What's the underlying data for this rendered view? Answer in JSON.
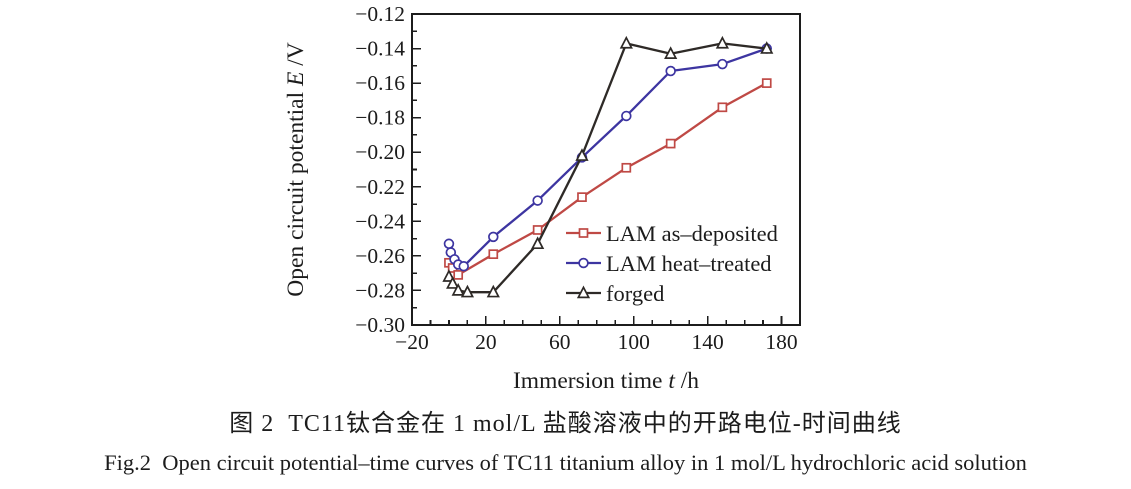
{
  "figure": {
    "caption_zh": "图 2  TC11钛合金在 1 mol/L 盐酸溶液中的开路电位-时间曲线",
    "caption_en": "Fig.2  Open circuit potential–time curves of TC11 titanium alloy in 1 mol/L hydrochloric acid solution"
  },
  "colors": {
    "as_deposited": "#bf4945",
    "heat_treated": "#3d35a1",
    "forged": "#2e2a27",
    "axis": "#1c1c1c",
    "marker_fill": "#ffffff",
    "background": "#ffffff"
  },
  "chart_data": {
    "type": "line",
    "title": "",
    "xlabel": "Immersion time t /h",
    "xlabel_parts": [
      [
        "Immersion time ",
        false
      ],
      [
        "t",
        true
      ],
      [
        " /h",
        false
      ]
    ],
    "ylabel": "Open circuit potential E /V",
    "ylabel_parts": [
      [
        "Open circuit potential ",
        false
      ],
      [
        "E",
        true
      ],
      [
        " /V",
        false
      ]
    ],
    "xlim": [
      -20,
      190
    ],
    "ylim": [
      -0.3,
      -0.12
    ],
    "grid": false,
    "x_ticks": {
      "values": [
        -20,
        20,
        60,
        100,
        140,
        180
      ],
      "labels": [
        "−20",
        "20",
        "60",
        "100",
        "140",
        "180"
      ],
      "minor_step": 10
    },
    "y_ticks": {
      "values": [
        -0.12,
        -0.14,
        -0.16,
        -0.18,
        -0.2,
        -0.22,
        -0.24,
        -0.26,
        -0.28,
        -0.3
      ],
      "labels": [
        "−0.12",
        "−0.14",
        "−0.16",
        "−0.18",
        "−0.20",
        "−0.22",
        "−0.24",
        "−0.26",
        "−0.28",
        "−0.30"
      ],
      "minor_step": 0.01
    },
    "legend_position": "inside right-bottom",
    "series": [
      {
        "name": "LAM as–deposited",
        "marker": "square",
        "color": "#bf4945",
        "points": [
          [
            0,
            -0.264
          ],
          [
            2,
            -0.267
          ],
          [
            5,
            -0.271
          ],
          [
            24,
            -0.259
          ],
          [
            48,
            -0.245
          ],
          [
            72,
            -0.226
          ],
          [
            96,
            -0.209
          ],
          [
            120,
            -0.195
          ],
          [
            148,
            -0.174
          ],
          [
            172,
            -0.16
          ]
        ]
      },
      {
        "name": "LAM heat–treated",
        "marker": "circle",
        "color": "#3d35a1",
        "points": [
          [
            0,
            -0.253
          ],
          [
            1,
            -0.258
          ],
          [
            3,
            -0.262
          ],
          [
            5,
            -0.265
          ],
          [
            8,
            -0.266
          ],
          [
            24,
            -0.249
          ],
          [
            48,
            -0.228
          ],
          [
            72,
            -0.203
          ],
          [
            96,
            -0.179
          ],
          [
            120,
            -0.153
          ],
          [
            148,
            -0.149
          ],
          [
            172,
            -0.14
          ]
        ]
      },
      {
        "name": "forged",
        "marker": "triangle",
        "color": "#2e2a27",
        "points": [
          [
            0,
            -0.272
          ],
          [
            2,
            -0.276
          ],
          [
            5,
            -0.28
          ],
          [
            10,
            -0.281
          ],
          [
            24,
            -0.281
          ],
          [
            48,
            -0.253
          ],
          [
            72,
            -0.202
          ],
          [
            96,
            -0.137
          ],
          [
            120,
            -0.143
          ],
          [
            148,
            -0.137
          ],
          [
            172,
            -0.14
          ]
        ]
      }
    ]
  }
}
